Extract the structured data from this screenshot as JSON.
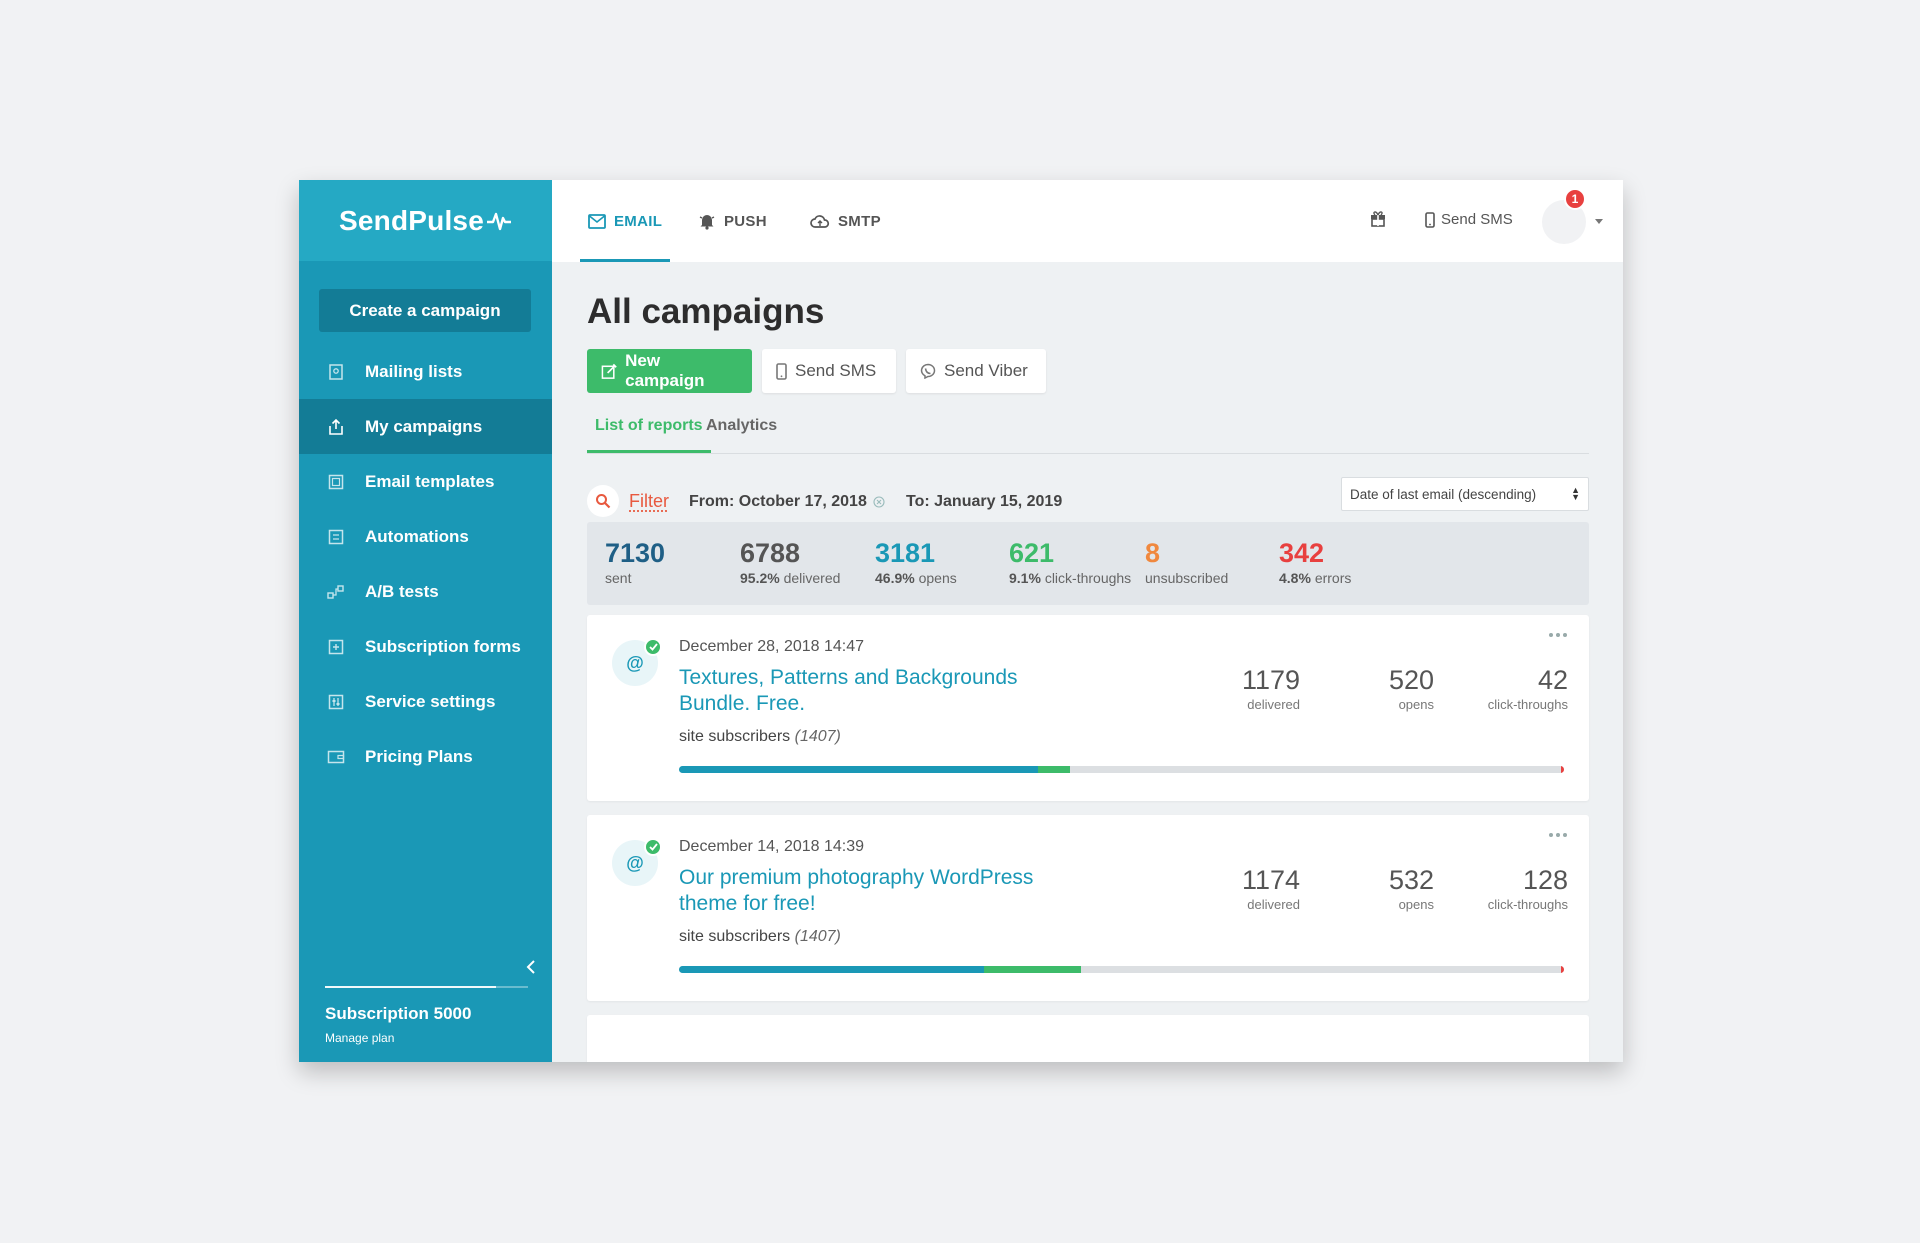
{
  "app": {
    "logo": "SendPulse"
  },
  "sidebar": {
    "create_label": "Create a campaign",
    "items": [
      {
        "label": "Mailing lists",
        "icon": "list-icon"
      },
      {
        "label": "My campaigns",
        "icon": "campaigns-icon",
        "active": true
      },
      {
        "label": "Email templates",
        "icon": "template-icon"
      },
      {
        "label": "Automations",
        "icon": "automation-icon"
      },
      {
        "label": "A/B tests",
        "icon": "ab-test-icon"
      },
      {
        "label": "Subscription forms",
        "icon": "form-icon"
      },
      {
        "label": "Service settings",
        "icon": "settings-icon"
      },
      {
        "label": "Pricing Plans",
        "icon": "wallet-icon"
      }
    ],
    "plan_title": "Subscription 5000",
    "plan_link": "Manage plan",
    "plan_usage_fraction": 0.84
  },
  "topbar": {
    "tabs": [
      {
        "label": "EMAIL",
        "icon": "mail-icon",
        "active": true
      },
      {
        "label": "PUSH",
        "icon": "bell-icon"
      },
      {
        "label": "SMTP",
        "icon": "cloud-icon"
      }
    ],
    "send_sms": "Send SMS",
    "notifications": "1"
  },
  "main": {
    "title": "All campaigns",
    "buttons": {
      "new_campaign": "New campaign",
      "send_sms": "Send SMS",
      "send_viber": "Send Viber"
    },
    "tabs": [
      {
        "label": "List of reports",
        "active": true
      },
      {
        "label": "Analytics"
      }
    ],
    "filter": {
      "label": "Filter",
      "from": "From: October 17, 2018",
      "to": "To: January 15, 2019",
      "sort": "Date of last email (descending)"
    },
    "summary": {
      "sent": {
        "value": "7130",
        "label": "sent",
        "color": "#1f5f86"
      },
      "delivered": {
        "value": "6788",
        "pct": "95.2%",
        "label": "delivered",
        "color": "#555555"
      },
      "opens": {
        "value": "3181",
        "pct": "46.9%",
        "label": "opens",
        "color": "#1a98b6"
      },
      "clicks": {
        "value": "621",
        "pct": "9.1%",
        "label": "click-throughs",
        "color": "#3dbb6a"
      },
      "unsub": {
        "value": "8",
        "label": "unsubscribed",
        "color": "#f0883e"
      },
      "errors": {
        "value": "342",
        "pct": "4.8%",
        "label": "errors",
        "color": "#e8403f"
      }
    },
    "campaigns": [
      {
        "date": "December 28, 2018 14:47",
        "title": "Textures, Patterns and Backgrounds Bundle. Free.",
        "list": "site subscribers",
        "list_count": "(1407)",
        "delivered": "1179",
        "delivered_label": "delivered",
        "opens": "520",
        "opens_label": "opens",
        "clicks": "42",
        "clicks_label": "click-throughs",
        "bar_opens_pct": 40.6,
        "bar_clicks_pct": 3.6
      },
      {
        "date": "December 14, 2018 14:39",
        "title": "Our premium photography WordPress theme for free!",
        "list": "site subscribers",
        "list_count": "(1407)",
        "delivered": "1174",
        "delivered_label": "delivered",
        "opens": "532",
        "opens_label": "opens",
        "clicks": "128",
        "clicks_label": "click-throughs",
        "bar_opens_pct": 34.5,
        "bar_clicks_pct": 10.9
      }
    ]
  }
}
